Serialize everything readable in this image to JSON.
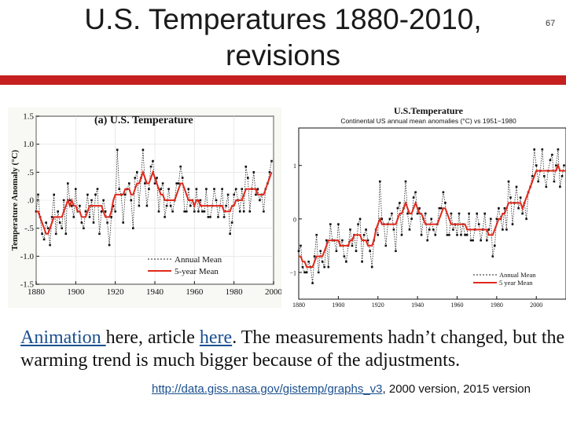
{
  "slide": {
    "title_line1": "U.S. Temperatures 1880-2010,",
    "title_line2": "revisions",
    "number": "67",
    "accent_color": "#c51f1f"
  },
  "caption": {
    "link1": "Animation ",
    "text1": "here, article ",
    "link2": "here",
    "text2": ".  The measurements hadn’t changed, but the warming trend is much bigger because of the adjustments.",
    "url": "http://data.giss.nasa.gov/gistemp/graphs_v3",
    "text3": ", 2000 version, 2015 version"
  },
  "chart_data": [
    {
      "type": "line",
      "title": "(a)  U.S. Temperature",
      "xlabel": "",
      "ylabel": "Temperature Anomaly (°C)",
      "xlim": [
        1880,
        2000
      ],
      "ylim": [
        -1.5,
        1.5
      ],
      "x_ticks": [
        "1880",
        "1900",
        "1920",
        "1940",
        "1960",
        "1980",
        "2000"
      ],
      "y_ticks": [
        "1.5",
        "1.0",
        ".5",
        ".0",
        "-.5",
        "-1.0",
        "-1.5"
      ],
      "legend": {
        "position": "bottom-right",
        "entries": [
          "Annual Mean",
          "5-year Mean"
        ]
      },
      "start_year": 1880,
      "series": [
        {
          "name": "Annual Mean",
          "color": "#222222",
          "values": [
            -0.2,
            0.1,
            -0.3,
            -0.6,
            -0.7,
            -0.4,
            -0.5,
            -0.8,
            -0.3,
            0.1,
            -0.6,
            -0.2,
            -0.4,
            -0.5,
            0.0,
            -0.6,
            0.3,
            0.0,
            -0.1,
            -0.3,
            0.2,
            -0.2,
            -0.1,
            -0.4,
            -0.5,
            -0.2,
            0.1,
            -0.3,
            0.0,
            -0.4,
            0.1,
            0.2,
            -0.6,
            -0.2,
            0.0,
            -0.2,
            -0.4,
            -0.8,
            -0.3,
            -0.1,
            -0.2,
            0.9,
            0.2,
            0.1,
            -0.4,
            0.1,
            0.2,
            0.3,
            0.0,
            -0.5,
            0.4,
            0.5,
            -0.1,
            0.4,
            0.9,
            0.3,
            -0.1,
            0.2,
            0.6,
            0.7,
            0.3,
            0.4,
            -0.2,
            0.2,
            0.3,
            -0.3,
            -0.1,
            0.2,
            -0.1,
            -0.2,
            0.0,
            0.3,
            0.3,
            0.6,
            0.4,
            -0.2,
            -0.2,
            0.2,
            -0.1,
            0.0,
            -0.2,
            0.2,
            -0.2,
            0.0,
            -0.2,
            -0.2,
            0.2,
            -0.3,
            -0.3,
            -0.1,
            0.2,
            0.0,
            -0.3,
            -0.1,
            0.2,
            -0.3,
            -0.1,
            0.1,
            -0.6,
            -0.4,
            0.1,
            0.2,
            0.0,
            -0.2,
            0.2,
            -0.2,
            0.6,
            0.4,
            -0.2,
            0.2,
            0.5,
            0.1,
            0.2,
            0.0,
            0.1,
            -0.2,
            0.2,
            0.3,
            0.5,
            0.7
          ]
        },
        {
          "name": "5-year Mean",
          "color": "#e0291b",
          "values": [
            -0.2,
            -0.2,
            -0.3,
            -0.4,
            -0.5,
            -0.6,
            -0.6,
            -0.5,
            -0.4,
            -0.3,
            -0.3,
            -0.3,
            -0.3,
            -0.3,
            -0.2,
            -0.1,
            0.0,
            -0.1,
            0.0,
            -0.1,
            -0.1,
            -0.2,
            -0.2,
            -0.3,
            -0.3,
            -0.3,
            -0.2,
            -0.1,
            -0.1,
            -0.1,
            -0.1,
            -0.1,
            -0.1,
            -0.1,
            -0.2,
            -0.3,
            -0.3,
            -0.3,
            -0.2,
            0.0,
            0.1,
            0.1,
            0.1,
            0.1,
            0.1,
            0.2,
            0.2,
            0.2,
            0.1,
            0.1,
            0.2,
            0.3,
            0.3,
            0.4,
            0.5,
            0.4,
            0.3,
            0.3,
            0.4,
            0.5,
            0.4,
            0.3,
            0.2,
            0.1,
            0.1,
            0.0,
            0.0,
            0.0,
            0.0,
            0.0,
            0.0,
            0.1,
            0.2,
            0.3,
            0.3,
            0.2,
            0.1,
            0.0,
            0.0,
            0.0,
            -0.1,
            0.0,
            0.0,
            -0.1,
            -0.1,
            -0.1,
            -0.1,
            -0.1,
            -0.1,
            -0.1,
            -0.1,
            -0.1,
            -0.1,
            -0.1,
            -0.1,
            -0.2,
            -0.2,
            -0.2,
            -0.2,
            -0.1,
            -0.1,
            0.0,
            0.0,
            0.0,
            0.0,
            0.1,
            0.2,
            0.2,
            0.2,
            0.2,
            0.2,
            0.2,
            0.1,
            0.1,
            0.1,
            0.1,
            0.2,
            0.3,
            0.4,
            0.5
          ]
        }
      ]
    },
    {
      "type": "line",
      "title": "U.S.Temperature",
      "subtitle": "Continental US annual mean anomalies (°C) vs 1951−1980",
      "xlabel": "",
      "ylabel": "",
      "xlim": [
        1880,
        2015
      ],
      "ylim": [
        -1.5,
        1.7
      ],
      "x_ticks": [
        "1880",
        "1900",
        "1920",
        "1940",
        "1960",
        "1980",
        "2000"
      ],
      "y_ticks": [
        "1",
        "0",
        "−1"
      ],
      "legend": {
        "position": "bottom-right",
        "entries": [
          "Annual Mean",
          "5 year Mean"
        ]
      },
      "start_year": 1880,
      "series": [
        {
          "name": "Annual Mean",
          "color": "#222222",
          "values": [
            -0.6,
            -0.5,
            -0.9,
            -1.0,
            -1.0,
            -0.8,
            -0.9,
            -1.2,
            -0.7,
            -0.3,
            -1.0,
            -0.6,
            -0.8,
            -0.9,
            -0.4,
            -0.9,
            -0.1,
            -0.4,
            -0.4,
            -0.6,
            -0.1,
            -0.5,
            -0.4,
            -0.7,
            -0.8,
            -0.5,
            -0.2,
            -0.5,
            -0.3,
            -0.6,
            -0.1,
            0.0,
            -0.8,
            -0.3,
            -0.2,
            -0.4,
            -0.6,
            -0.9,
            -0.4,
            -0.2,
            -0.3,
            0.7,
            0.0,
            -0.1,
            -0.5,
            -0.1,
            0.0,
            0.1,
            -0.2,
            -0.6,
            0.2,
            0.3,
            -0.3,
            0.2,
            0.7,
            0.1,
            -0.2,
            0.0,
            0.4,
            0.5,
            0.1,
            0.2,
            -0.3,
            0.0,
            0.1,
            -0.4,
            -0.2,
            0.0,
            -0.2,
            -0.3,
            -0.1,
            0.2,
            0.2,
            0.5,
            0.3,
            -0.3,
            -0.3,
            0.1,
            -0.2,
            -0.1,
            -0.3,
            0.1,
            -0.3,
            -0.1,
            -0.3,
            -0.3,
            0.1,
            -0.4,
            -0.4,
            -0.2,
            0.1,
            -0.1,
            -0.4,
            -0.2,
            0.1,
            -0.4,
            -0.2,
            0.0,
            -0.7,
            -0.5,
            0.0,
            0.2,
            0.0,
            -0.2,
            0.2,
            -0.2,
            0.7,
            0.4,
            -0.1,
            0.3,
            0.6,
            0.2,
            0.4,
            0.1,
            0.3,
            0.0,
            0.5,
            0.6,
            0.8,
            1.3,
            1.0,
            0.7,
            0.9,
            1.3,
            0.8,
            0.6,
            0.9,
            1.1,
            1.2,
            0.7,
            1.0,
            1.3,
            0.6,
            0.8,
            1.0
          ]
        },
        {
          "name": "5 year Mean",
          "color": "#e0291b",
          "values": [
            -0.7,
            -0.7,
            -0.8,
            -0.8,
            -0.9,
            -0.9,
            -0.9,
            -0.9,
            -0.8,
            -0.7,
            -0.7,
            -0.7,
            -0.7,
            -0.6,
            -0.5,
            -0.4,
            -0.4,
            -0.4,
            -0.4,
            -0.4,
            -0.4,
            -0.5,
            -0.5,
            -0.5,
            -0.5,
            -0.5,
            -0.4,
            -0.4,
            -0.3,
            -0.3,
            -0.3,
            -0.3,
            -0.4,
            -0.4,
            -0.4,
            -0.5,
            -0.5,
            -0.5,
            -0.4,
            -0.2,
            -0.1,
            0.0,
            -0.1,
            -0.1,
            -0.1,
            -0.1,
            -0.1,
            -0.1,
            -0.1,
            -0.1,
            0.0,
            0.1,
            0.1,
            0.2,
            0.3,
            0.2,
            0.1,
            0.1,
            0.2,
            0.3,
            0.2,
            0.1,
            0.1,
            0.0,
            -0.1,
            -0.1,
            -0.1,
            -0.1,
            -0.1,
            -0.1,
            -0.1,
            0.0,
            0.1,
            0.2,
            0.2,
            0.1,
            0.0,
            -0.1,
            -0.1,
            -0.1,
            -0.1,
            -0.1,
            -0.1,
            -0.1,
            -0.1,
            -0.2,
            -0.2,
            -0.2,
            -0.2,
            -0.2,
            -0.2,
            -0.2,
            -0.2,
            -0.2,
            -0.2,
            -0.2,
            -0.3,
            -0.3,
            -0.3,
            -0.2,
            -0.1,
            0.0,
            0.0,
            0.1,
            0.1,
            0.2,
            0.3,
            0.3,
            0.3,
            0.3,
            0.3,
            0.3,
            0.3,
            0.2,
            0.3,
            0.4,
            0.5,
            0.6,
            0.7,
            0.8,
            0.9,
            0.9,
            0.9,
            0.9,
            0.9,
            0.9,
            0.9,
            0.9,
            0.9,
            0.9,
            0.9,
            1.0,
            0.9,
            0.9,
            0.9,
            0.9
          ]
        }
      ]
    }
  ]
}
